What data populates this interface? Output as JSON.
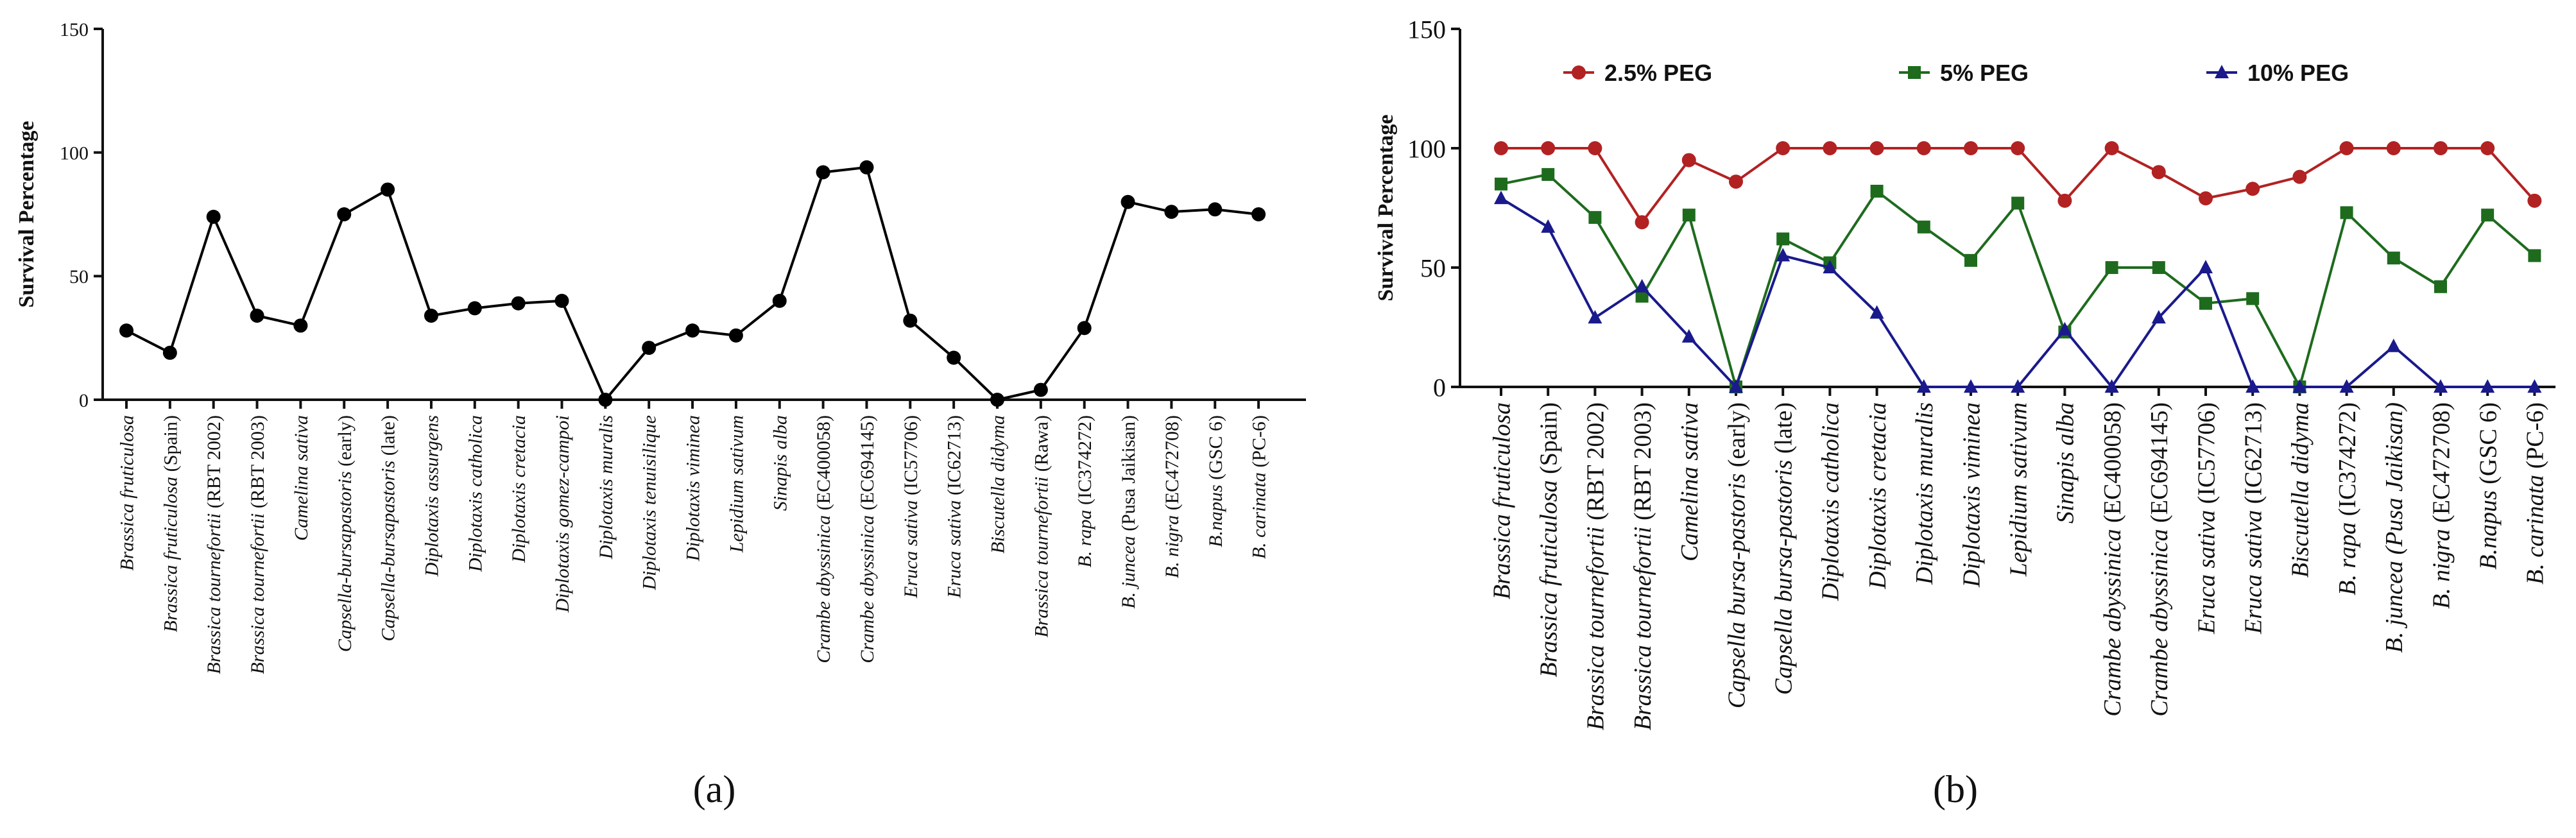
{
  "chart_data": [
    {
      "type": "line",
      "panel_label": "(a)",
      "ylabel": "Survival Percentage",
      "xlabel": "",
      "ylim": [
        0,
        150
      ],
      "yticks": [
        0,
        50,
        100,
        150
      ],
      "legend": "none",
      "categories": [
        {
          "it": "Brassica fruticulosa",
          "rest": ""
        },
        {
          "it": "Brassica fruticulosa",
          "rest": " (Spain)"
        },
        {
          "it": "Brassica tournefortii",
          "rest": " (RBT 2002)"
        },
        {
          "it": "Brassica tournefortii",
          "rest": " (RBT 2003)"
        },
        {
          "it": "Camelina sativa",
          "rest": ""
        },
        {
          "it": "Capsella-bursapastoris",
          "rest": " (early)"
        },
        {
          "it": "Capsella-bursapastoris",
          "rest": " (late)"
        },
        {
          "it": "Diplotaxis assurgens",
          "rest": ""
        },
        {
          "it": "Diplotaxis catholica",
          "rest": ""
        },
        {
          "it": "Diplotaxis cretacia",
          "rest": ""
        },
        {
          "it": "Diplotaxis gomez-campoi",
          "rest": ""
        },
        {
          "it": "Diplotaxis muralis",
          "rest": ""
        },
        {
          "it": "Diplotaxis tenuisilique",
          "rest": ""
        },
        {
          "it": "Diplotaxis viminea",
          "rest": ""
        },
        {
          "it": "Lepidium sativum",
          "rest": ""
        },
        {
          "it": "Sinapis alba",
          "rest": ""
        },
        {
          "it": "Crambe abyssinica",
          "rest": " (EC400058)"
        },
        {
          "it": "Crambe abyssinica",
          "rest": " (EC694145)"
        },
        {
          "it": "Eruca sativa",
          "rest": " (IC57706)"
        },
        {
          "it": "Eruca sativa",
          "rest": " (IC62713)"
        },
        {
          "it": "Biscutella didyma",
          "rest": ""
        },
        {
          "it": "Brassica tournefortii",
          "rest": " (Rawa)"
        },
        {
          "it": "B. rapa",
          "rest": " (IC374272)"
        },
        {
          "it": "B. juncea",
          "rest": " (Pusa Jaikisan)"
        },
        {
          "it": "B. nigra",
          "rest": " (EC472708)"
        },
        {
          "it": "B.napus",
          "rest": " (GSC 6)"
        },
        {
          "it": "B. carinata",
          "rest": " (PC-6)"
        }
      ],
      "series": [
        {
          "name": "Survival",
          "color": "#000000",
          "marker": "circle",
          "values": [
            28,
            19,
            74,
            34,
            30,
            75,
            85,
            34,
            37,
            39,
            40,
            0,
            21,
            28,
            26,
            40,
            92,
            94,
            32,
            17,
            0,
            4,
            29,
            80,
            76,
            77,
            75
          ]
        }
      ]
    },
    {
      "type": "line",
      "panel_label": "(b)",
      "ylabel": "Survival Percentage",
      "xlabel": "",
      "ylim": [
        0,
        150
      ],
      "yticks": [
        0,
        50,
        100,
        150
      ],
      "legend": "top",
      "categories": [
        {
          "it": "Brassica fruticulosa",
          "rest": ""
        },
        {
          "it": "Brassica fruticulosa",
          "rest": " (Spain)"
        },
        {
          "it": "Brassica tournefortii",
          "rest": " (RBT 2002)"
        },
        {
          "it": "Brassica tournefortii",
          "rest": " (RBT 2003)"
        },
        {
          "it": "Camelina sativa",
          "rest": ""
        },
        {
          "it": "Capsella bursa-pastoris",
          "rest": " (early)"
        },
        {
          "it": "Capsella bursa-pastoris",
          "rest": " (late)"
        },
        {
          "it": "Diplotaxis catholica",
          "rest": ""
        },
        {
          "it": "Diplotaxis cretacia",
          "rest": ""
        },
        {
          "it": "Diplotaxis muralis",
          "rest": ""
        },
        {
          "it": "Diplotaxis viminea",
          "rest": ""
        },
        {
          "it": "Lepidium sativum",
          "rest": ""
        },
        {
          "it": "Sinapis alba",
          "rest": ""
        },
        {
          "it": "Crambe abyssinica",
          "rest": " (EC400058)"
        },
        {
          "it": "Crambe abyssinica",
          "rest": " (EC694145)"
        },
        {
          "it": "Eruca sativa",
          "rest": " (IC57706)"
        },
        {
          "it": "Eruca sativa",
          "rest": " (IC62713)"
        },
        {
          "it": "Biscutella didyma",
          "rest": ""
        },
        {
          "it": "B. rapa",
          "rest": " (IC374272)"
        },
        {
          "it": "B. juncea (Pusa Jaikisan)",
          "rest": ""
        },
        {
          "it": "B. nigra",
          "rest": " (EC472708)"
        },
        {
          "it": "B.napus",
          "rest": " (GSC 6)"
        },
        {
          "it": "B. carinata",
          "rest": " (PC-6)"
        }
      ],
      "series": [
        {
          "name": "2.5% PEG",
          "color": "#b22222",
          "marker": "circle",
          "values": [
            100,
            100,
            100,
            69,
            95,
            86,
            100,
            100,
            100,
            100,
            100,
            100,
            78,
            100,
            90,
            79,
            83,
            88,
            100,
            100,
            100,
            100,
            78
          ]
        },
        {
          "name": "5% PEG",
          "color": "#1e6b1e",
          "marker": "square",
          "values": [
            85,
            89,
            71,
            38,
            72,
            0,
            62,
            52,
            82,
            67,
            53,
            77,
            23,
            50,
            50,
            35,
            37,
            0,
            73,
            54,
            42,
            72,
            55
          ]
        },
        {
          "name": "10% PEG",
          "color": "#1a1a8c",
          "marker": "triangle",
          "values": [
            79,
            67,
            29,
            42,
            21,
            0,
            55,
            50,
            31,
            0,
            0,
            0,
            24,
            0,
            29,
            50,
            0,
            0,
            0,
            17,
            0,
            0,
            0
          ]
        }
      ]
    }
  ]
}
